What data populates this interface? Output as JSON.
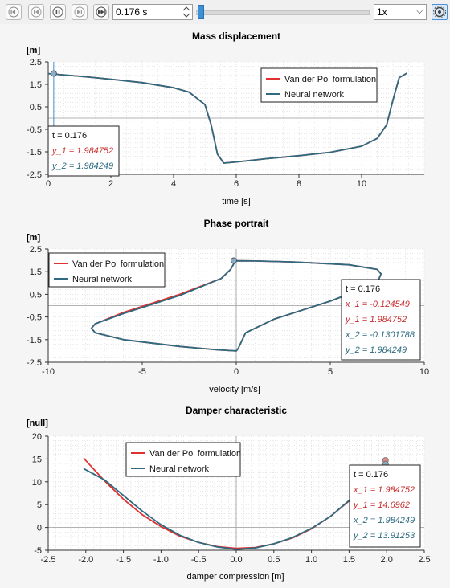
{
  "toolbar": {
    "time_value": "0.176 s",
    "speed_value": "1x",
    "slider_progress": 0.015
  },
  "charts": [
    {
      "title": "Mass displacement",
      "unit": "[m]",
      "xlabel": "time [s]",
      "legend": [
        "Van der Pol formulation",
        "Neural network"
      ],
      "readout": {
        "t": "t     = 0.176",
        "lines": [
          "y_1 = 1.984752",
          "y_2 = 1.984249"
        ]
      }
    },
    {
      "title": "Phase portrait",
      "unit": "[m]",
      "xlabel": "velocity [m/s]",
      "legend": [
        "Van der Pol formulation",
        "Neural network"
      ],
      "readout": {
        "t": "t     = 0.176",
        "lines": [
          "x_1 = -0.124549",
          "y_1 = 1.984752",
          "x_2 = -0.1301788",
          "y_2 = 1.984249"
        ]
      }
    },
    {
      "title": "Damper characteristic",
      "unit": "[null]",
      "xlabel": "damper compression [m]",
      "legend": [
        "Van der Pol formulation",
        "Neural network"
      ],
      "readout": {
        "t": "t     = 0.176",
        "lines": [
          "x_1 = 1.984752",
          "y_1 = 14.6962",
          "x_2 = 1.984249",
          "y_2 = 13.91253"
        ]
      }
    }
  ],
  "chart_data": [
    {
      "type": "line",
      "title": "Mass displacement",
      "xlabel": "time [s]",
      "ylabel": "[m]",
      "xlim": [
        0,
        12
      ],
      "ylim": [
        -2.5,
        2.5
      ],
      "xticks": [
        0,
        2,
        4,
        6,
        8,
        10
      ],
      "yticks": [
        2.5,
        1.5,
        0.5,
        -0.5,
        -1.5,
        -2.5
      ],
      "grid": true,
      "legend_position": "top-right",
      "series": [
        {
          "name": "Van der Pol formulation",
          "color": "#e03030",
          "x": [
            0,
            1,
            2,
            3,
            4,
            4.5,
            5,
            5.2,
            5.4,
            5.6,
            6,
            7,
            8,
            9,
            10,
            10.5,
            10.8,
            11,
            11.2,
            11.45
          ],
          "y": [
            1.98,
            1.86,
            1.73,
            1.58,
            1.35,
            1.15,
            0.6,
            -0.3,
            -1.6,
            -2.0,
            -1.95,
            -1.8,
            -1.67,
            -1.52,
            -1.25,
            -0.9,
            -0.3,
            0.8,
            1.8,
            2.0
          ]
        },
        {
          "name": "Neural network",
          "color": "#2e6b80",
          "x": [
            0,
            1,
            2,
            3,
            4,
            4.5,
            5,
            5.2,
            5.4,
            5.6,
            6,
            7,
            8,
            9,
            10,
            10.5,
            10.8,
            11,
            11.2,
            11.45
          ],
          "y": [
            1.98,
            1.86,
            1.73,
            1.58,
            1.35,
            1.15,
            0.6,
            -0.3,
            -1.6,
            -2.0,
            -1.95,
            -1.8,
            -1.67,
            -1.52,
            -1.25,
            -0.9,
            -0.3,
            0.8,
            1.8,
            2.0
          ]
        }
      ],
      "marker": {
        "x": 0.176,
        "y": 1.984
      }
    },
    {
      "type": "line",
      "title": "Phase portrait",
      "xlabel": "velocity [m/s]",
      "ylabel": "[m]",
      "xlim": [
        -10,
        10
      ],
      "ylim": [
        -2.5,
        2.5
      ],
      "xticks": [
        -10,
        -5,
        0,
        5,
        10
      ],
      "yticks": [
        2.5,
        1.5,
        0.5,
        -0.5,
        -1.5,
        -2.5
      ],
      "grid": true,
      "legend_position": "top-left",
      "series": [
        {
          "name": "Van der Pol formulation",
          "color": "#e03030",
          "x": [
            0,
            -0.1,
            -0.3,
            -0.8,
            -3,
            -6,
            -7.5,
            -7.7,
            -7.5,
            -6,
            -3,
            -1,
            0,
            0.1,
            0.5,
            2,
            5,
            7.5,
            7.7,
            7.5,
            6,
            3,
            1,
            0
          ],
          "y": [
            1.98,
            1.9,
            1.6,
            1.2,
            0.5,
            -0.3,
            -0.8,
            -1.0,
            -1.2,
            -1.5,
            -1.8,
            -1.95,
            -2.0,
            -1.9,
            -1.2,
            -0.6,
            0.2,
            1.0,
            1.4,
            1.6,
            1.8,
            1.93,
            1.97,
            1.98
          ]
        },
        {
          "name": "Neural network",
          "color": "#2e6b80",
          "x": [
            0,
            -0.1,
            -0.3,
            -0.8,
            -3,
            -6,
            -7.5,
            -7.7,
            -7.5,
            -6,
            -3,
            -1,
            0,
            0.1,
            0.5,
            2,
            5,
            7.5,
            7.7,
            7.5,
            6,
            3,
            1,
            0
          ],
          "y": [
            1.98,
            1.9,
            1.6,
            1.2,
            0.45,
            -0.35,
            -0.8,
            -1.0,
            -1.2,
            -1.5,
            -1.8,
            -1.95,
            -2.0,
            -1.9,
            -1.2,
            -0.6,
            0.2,
            1.0,
            1.4,
            1.6,
            1.8,
            1.93,
            1.97,
            1.98
          ]
        }
      ],
      "marker": {
        "x": -0.13,
        "y": 1.984
      }
    },
    {
      "type": "line",
      "title": "Damper characteristic",
      "xlabel": "damper compression [m]",
      "ylabel": "[null]",
      "xlim": [
        -2.5,
        2.5
      ],
      "ylim": [
        -5,
        20
      ],
      "xticks": [
        -2.5,
        -2.0,
        -1.5,
        -1.0,
        -0.5,
        0.0,
        0.5,
        1.0,
        1.5,
        2.0,
        2.5
      ],
      "yticks": [
        20,
        15,
        10,
        5,
        0,
        -5
      ],
      "grid": true,
      "legend_position": "top-center",
      "series": [
        {
          "name": "Van der Pol formulation",
          "color": "#e03030",
          "x": [
            -2.03,
            -1.75,
            -1.5,
            -1.25,
            -1.0,
            -0.75,
            -0.5,
            -0.25,
            0.0,
            0.25,
            0.5,
            0.75,
            1.0,
            1.25,
            1.5,
            1.75,
            2.0
          ],
          "y": [
            15.2,
            10.2,
            6.2,
            2.8,
            0.2,
            -1.9,
            -3.3,
            -4.2,
            -4.6,
            -4.4,
            -3.6,
            -2.3,
            -0.3,
            2.4,
            5.8,
            10.0,
            14.7
          ]
        },
        {
          "name": "Neural network",
          "color": "#2e6b80",
          "x": [
            -2.03,
            -1.75,
            -1.5,
            -1.25,
            -1.0,
            -0.75,
            -0.5,
            -0.25,
            0.0,
            0.25,
            0.5,
            0.75,
            1.0,
            1.25,
            1.5,
            1.75,
            2.0
          ],
          "y": [
            12.9,
            10.4,
            7.0,
            3.6,
            0.6,
            -1.7,
            -3.3,
            -4.3,
            -4.8,
            -4.5,
            -3.6,
            -2.2,
            -0.2,
            2.4,
            5.9,
            9.8,
            13.9
          ]
        }
      ],
      "marker": {
        "x": 1.985,
        "y": 14.3
      }
    }
  ]
}
